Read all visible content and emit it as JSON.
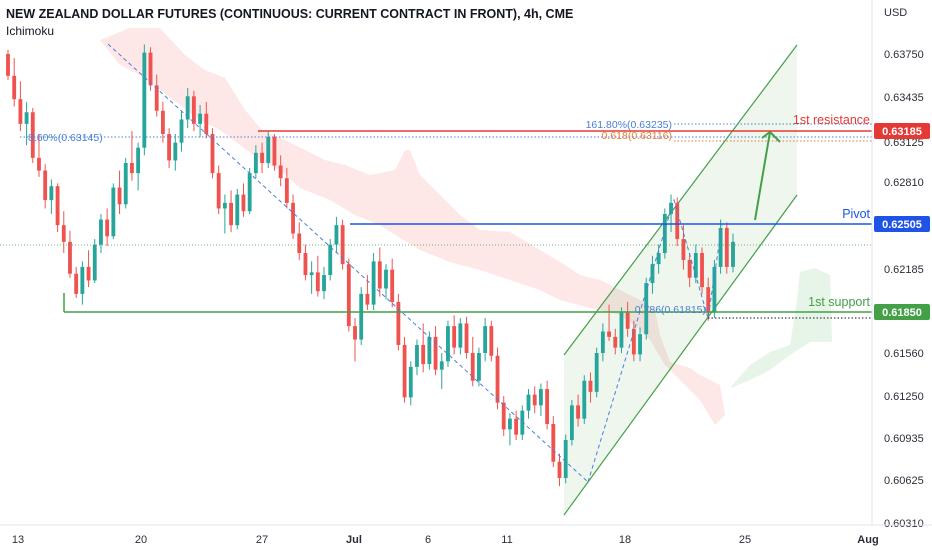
{
  "header": {
    "title": "NEW ZEALAND DOLLAR FUTURES (CONTINUOUS: CURRENT CONTRACT IN FRONT), 4h, CME",
    "indicator": "Ichimoku"
  },
  "chart_data": {
    "type": "candlestick",
    "currency": "USD",
    "y_ticks": [
      "0.63750",
      "0.63435",
      "0.63125",
      "0.62810",
      "0.62185",
      "0.61560",
      "0.61250",
      "0.60935",
      "0.60625",
      "0.60310"
    ],
    "y_tick_values": [
      0.6375,
      0.63435,
      0.63125,
      0.6281,
      0.62185,
      0.6156,
      0.6125,
      0.60935,
      0.60625,
      0.6031
    ],
    "x_ticks": [
      "13",
      "20",
      "27",
      "Jul",
      "6",
      "11",
      "18",
      "25",
      "Aug"
    ],
    "x_tick_bold": [
      false,
      false,
      false,
      true,
      false,
      false,
      false,
      false,
      true
    ],
    "levels": [
      {
        "name": "1st resistance",
        "price_label": "0.63185",
        "value": 0.63185,
        "color": "#e53935"
      },
      {
        "name": "Pivot",
        "price_label": "0.62505",
        "value": 0.62505,
        "color": "#1e53e5"
      },
      {
        "name": "1st support",
        "price_label": "0.61850",
        "value": 0.6185,
        "color": "#43a047"
      }
    ],
    "fib_labels": {
      "upper_left": "8.60%(0.63145)",
      "ext_1618": "161.80%(0.63235)",
      "ret_618": "0.618(0.63116)",
      "ret_786": "0.786(0.61815)"
    },
    "candles": [
      [
        0.6375,
        0.6378,
        0.6356,
        0.6359
      ],
      [
        0.6359,
        0.6372,
        0.6337,
        0.6342
      ],
      [
        0.6342,
        0.6355,
        0.632,
        0.6325
      ],
      [
        0.6325,
        0.634,
        0.631,
        0.6333
      ],
      [
        0.6333,
        0.6336,
        0.6296,
        0.63
      ],
      [
        0.63,
        0.6318,
        0.6285,
        0.629
      ],
      [
        0.629,
        0.6295,
        0.6262,
        0.6268
      ],
      [
        0.6268,
        0.6283,
        0.6258,
        0.6278
      ],
      [
        0.6278,
        0.628,
        0.6245,
        0.625
      ],
      [
        0.625,
        0.626,
        0.623,
        0.6238
      ],
      [
        0.6238,
        0.6246,
        0.6212,
        0.6215
      ],
      [
        0.6215,
        0.622,
        0.6197,
        0.62
      ],
      [
        0.62,
        0.6224,
        0.6192,
        0.622
      ],
      [
        0.622,
        0.6232,
        0.6205,
        0.621
      ],
      [
        0.621,
        0.624,
        0.6208,
        0.6236
      ],
      [
        0.6236,
        0.6258,
        0.623,
        0.6254
      ],
      [
        0.6254,
        0.6262,
        0.6235,
        0.6242
      ],
      [
        0.6242,
        0.628,
        0.624,
        0.6277
      ],
      [
        0.6277,
        0.629,
        0.6258,
        0.6265
      ],
      [
        0.6265,
        0.63,
        0.6262,
        0.6296
      ],
      [
        0.6296,
        0.632,
        0.6282,
        0.6288
      ],
      [
        0.6288,
        0.6312,
        0.6275,
        0.6308
      ],
      [
        0.6308,
        0.6382,
        0.6302,
        0.6376
      ],
      [
        0.6376,
        0.638,
        0.6348,
        0.6352
      ],
      [
        0.6352,
        0.636,
        0.633,
        0.6334
      ],
      [
        0.6334,
        0.634,
        0.6312,
        0.6318
      ],
      [
        0.6318,
        0.6322,
        0.6292,
        0.6298
      ],
      [
        0.6298,
        0.6318,
        0.629,
        0.6312
      ],
      [
        0.6312,
        0.6334,
        0.6305,
        0.6328
      ],
      [
        0.6328,
        0.635,
        0.6322,
        0.6344
      ],
      [
        0.6344,
        0.6348,
        0.632,
        0.6325
      ],
      [
        0.6325,
        0.6338,
        0.6316,
        0.6332
      ],
      [
        0.6332,
        0.634,
        0.6315,
        0.6318
      ],
      [
        0.6318,
        0.6322,
        0.6284,
        0.6288
      ],
      [
        0.6288,
        0.6294,
        0.6258,
        0.6262
      ],
      [
        0.6262,
        0.6272,
        0.6244,
        0.6266
      ],
      [
        0.6266,
        0.6275,
        0.6245,
        0.625
      ],
      [
        0.625,
        0.6276,
        0.6247,
        0.6272
      ],
      [
        0.6272,
        0.628,
        0.6256,
        0.626
      ],
      [
        0.626,
        0.6292,
        0.6258,
        0.6288
      ],
      [
        0.6288,
        0.631,
        0.6284,
        0.6304
      ],
      [
        0.6304,
        0.6312,
        0.6288,
        0.6296
      ],
      [
        0.6296,
        0.632,
        0.6292,
        0.6316
      ],
      [
        0.6316,
        0.6318,
        0.629,
        0.6294
      ],
      [
        0.6294,
        0.6302,
        0.6278,
        0.6284
      ],
      [
        0.6284,
        0.6292,
        0.6262,
        0.6266
      ],
      [
        0.6266,
        0.6272,
        0.624,
        0.6244
      ],
      [
        0.6244,
        0.6252,
        0.6225,
        0.623
      ],
      [
        0.623,
        0.6236,
        0.621,
        0.6214
      ],
      [
        0.6214,
        0.6224,
        0.62,
        0.6216
      ],
      [
        0.6216,
        0.6228,
        0.6198,
        0.6202
      ],
      [
        0.6202,
        0.622,
        0.6196,
        0.6214
      ],
      [
        0.6214,
        0.624,
        0.621,
        0.6236
      ],
      [
        0.6236,
        0.6256,
        0.623,
        0.625
      ],
      [
        0.625,
        0.6254,
        0.6218,
        0.6222
      ],
      [
        0.6222,
        0.6226,
        0.6172,
        0.6176
      ],
      [
        0.6176,
        0.6182,
        0.615,
        0.6166
      ],
      [
        0.6166,
        0.6205,
        0.6162,
        0.62
      ],
      [
        0.62,
        0.6214,
        0.6188,
        0.6192
      ],
      [
        0.6192,
        0.623,
        0.6188,
        0.6224
      ],
      [
        0.6224,
        0.6234,
        0.6198,
        0.6204
      ],
      [
        0.6204,
        0.6222,
        0.6196,
        0.6218
      ],
      [
        0.6218,
        0.6226,
        0.619,
        0.6194
      ],
      [
        0.6194,
        0.62,
        0.6158,
        0.6162
      ],
      [
        0.6162,
        0.6168,
        0.612,
        0.6124
      ],
      [
        0.6124,
        0.615,
        0.6118,
        0.6146
      ],
      [
        0.6146,
        0.6166,
        0.614,
        0.6162
      ],
      [
        0.6162,
        0.6178,
        0.6142,
        0.6148
      ],
      [
        0.6148,
        0.6172,
        0.6144,
        0.6168
      ],
      [
        0.6168,
        0.6176,
        0.614,
        0.6144
      ],
      [
        0.6144,
        0.6156,
        0.613,
        0.615
      ],
      [
        0.615,
        0.618,
        0.6146,
        0.6176
      ],
      [
        0.6176,
        0.6184,
        0.6155,
        0.616
      ],
      [
        0.616,
        0.6182,
        0.6155,
        0.6178
      ],
      [
        0.6178,
        0.6183,
        0.6152,
        0.6156
      ],
      [
        0.6156,
        0.6168,
        0.6132,
        0.6136
      ],
      [
        0.6136,
        0.616,
        0.6132,
        0.6156
      ],
      [
        0.6156,
        0.6182,
        0.615,
        0.6176
      ],
      [
        0.6176,
        0.618,
        0.615,
        0.6154
      ],
      [
        0.6154,
        0.616,
        0.6115,
        0.612
      ],
      [
        0.612,
        0.6125,
        0.6095,
        0.61
      ],
      [
        0.61,
        0.6112,
        0.6088,
        0.6108
      ],
      [
        0.6108,
        0.6114,
        0.6092,
        0.6096
      ],
      [
        0.6096,
        0.6118,
        0.6092,
        0.6114
      ],
      [
        0.6114,
        0.613,
        0.6108,
        0.6126
      ],
      [
        0.6126,
        0.6132,
        0.6112,
        0.6118
      ],
      [
        0.6118,
        0.6134,
        0.611,
        0.613
      ],
      [
        0.613,
        0.6136,
        0.61,
        0.6104
      ],
      [
        0.6104,
        0.611,
        0.6072,
        0.6076
      ],
      [
        0.6076,
        0.6082,
        0.6058,
        0.6064
      ],
      [
        0.6064,
        0.6096,
        0.606,
        0.6092
      ],
      [
        0.6092,
        0.6122,
        0.6088,
        0.6118
      ],
      [
        0.6118,
        0.6126,
        0.6102,
        0.6108
      ],
      [
        0.6108,
        0.614,
        0.6104,
        0.6136
      ],
      [
        0.6136,
        0.6142,
        0.612,
        0.6128
      ],
      [
        0.6128,
        0.616,
        0.6124,
        0.6156
      ],
      [
        0.6156,
        0.6178,
        0.615,
        0.6172
      ],
      [
        0.6172,
        0.6192,
        0.6165,
        0.6168
      ],
      [
        0.6168,
        0.6174,
        0.6155,
        0.616
      ],
      [
        0.616,
        0.619,
        0.6156,
        0.6186
      ],
      [
        0.6186,
        0.6194,
        0.6168,
        0.6174
      ],
      [
        0.6174,
        0.618,
        0.615,
        0.6155
      ],
      [
        0.6155,
        0.6175,
        0.615,
        0.617
      ],
      [
        0.617,
        0.6212,
        0.6166,
        0.6208
      ],
      [
        0.6208,
        0.6228,
        0.62,
        0.6222
      ],
      [
        0.6222,
        0.6236,
        0.6215,
        0.623
      ],
      [
        0.623,
        0.6262,
        0.6226,
        0.6258
      ],
      [
        0.6258,
        0.6272,
        0.6245,
        0.6266
      ],
      [
        0.6266,
        0.627,
        0.6235,
        0.624
      ],
      [
        0.624,
        0.625,
        0.6218,
        0.6225
      ],
      [
        0.6225,
        0.623,
        0.6205,
        0.6212
      ],
      [
        0.6212,
        0.6236,
        0.6208,
        0.623
      ],
      [
        0.623,
        0.6234,
        0.62,
        0.6205
      ],
      [
        0.6205,
        0.6212,
        0.618,
        0.6186
      ],
      [
        0.6186,
        0.6225,
        0.6182,
        0.622
      ],
      [
        0.622,
        0.6254,
        0.6215,
        0.6248
      ],
      [
        0.6248,
        0.6252,
        0.6215,
        0.622
      ],
      [
        0.622,
        0.6244,
        0.6216,
        0.6238
      ]
    ]
  }
}
